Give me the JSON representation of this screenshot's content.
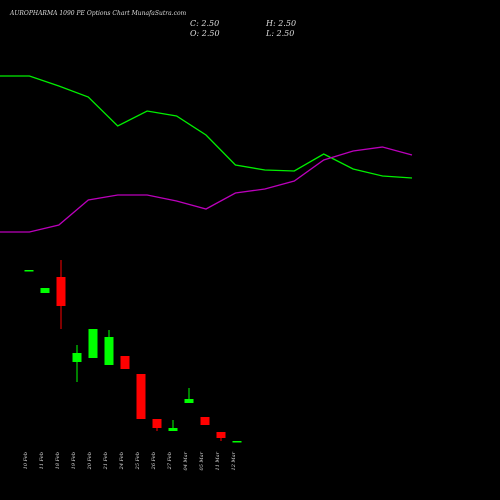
{
  "header": {
    "title": "AUROPHARMA 1090 PE Options Chart MunafaSutra.com",
    "close": "C: 2.50",
    "high": "H: 2.50",
    "open": "O: 2.50",
    "low": "L: 2.50"
  },
  "chart_data": [
    {
      "type": "line",
      "ylim": [
        0,
        25
      ],
      "series": [
        {
          "color": "#00ee00",
          "values": [
            17.4,
            17.4,
            16.4,
            15.3,
            12.4,
            13.9,
            13.4,
            11.5,
            8.5,
            8.0,
            7.9,
            9.6,
            8.1,
            7.4,
            7.2
          ]
        },
        {
          "color": "#bb00bb",
          "values": [
            1.8,
            1.8,
            2.5,
            5.0,
            5.5,
            5.5,
            4.9,
            4.1,
            5.7,
            6.1,
            6.9,
            9.0,
            9.9,
            10.3,
            9.5
          ]
        }
      ]
    },
    {
      "type": "candlestick",
      "ylim": [
        0,
        14
      ],
      "up_color": "#00ff00",
      "down_color": "#ff0000",
      "categories": [
        "10 Feb",
        "11 Feb",
        "18 Feb",
        "19 Feb",
        "20 Feb",
        "21 Feb",
        "24 Feb",
        "25 Feb",
        "26 Feb",
        "27 Feb",
        "04 Mar",
        "05 Mar",
        "11 Mar",
        "12 Mar"
      ],
      "open": [
        11.05,
        9.9,
        10.7,
        6.45,
        6.65,
        6.3,
        6.75,
        5.85,
        3.6,
        3.0,
        4.4,
        3.7,
        2.95,
        2.5
      ],
      "high": [
        11.05,
        10.15,
        11.55,
        7.3,
        8.1,
        8.05,
        6.75,
        5.85,
        3.6,
        3.55,
        5.15,
        3.7,
        2.95,
        2.5
      ],
      "low": [
        11.05,
        9.9,
        8.1,
        5.45,
        6.65,
        6.3,
        6.1,
        3.6,
        3.0,
        3.0,
        4.4,
        3.3,
        2.5,
        2.5
      ],
      "close": [
        11.05,
        10.15,
        9.25,
        6.9,
        8.1,
        7.7,
        6.1,
        3.6,
        3.15,
        3.15,
        4.6,
        3.3,
        2.65,
        2.5
      ]
    }
  ]
}
